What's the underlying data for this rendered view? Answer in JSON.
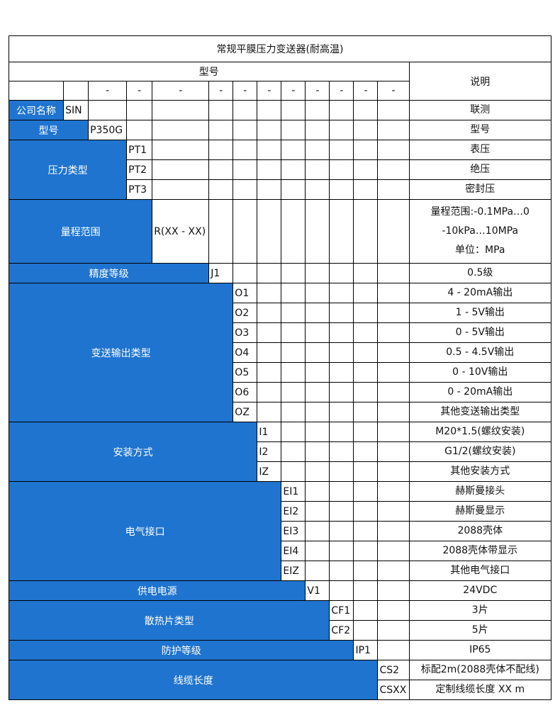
{
  "title": "常规平膜压力变送器(耐高温)",
  "header": {
    "model_label": "型号",
    "description_label": "说明",
    "separators": [
      "-",
      "-",
      "-",
      "-",
      "-",
      "-",
      "-",
      "-",
      "-",
      "-",
      "-"
    ]
  },
  "colors": {
    "label_bg": "#1f74cf",
    "label_text": "#ffffff",
    "border": "#000000"
  },
  "groups": [
    {
      "label": "公司名称",
      "items": [
        {
          "code": "SIN",
          "desc": [
            "联测"
          ]
        }
      ]
    },
    {
      "label": "型号",
      "items": [
        {
          "code": "P350G",
          "desc": [
            "型号"
          ]
        }
      ]
    },
    {
      "label": "压力类型",
      "items": [
        {
          "code": "PT1",
          "desc": [
            "表压"
          ]
        },
        {
          "code": "PT2",
          "desc": [
            "绝压"
          ]
        },
        {
          "code": "PT3",
          "desc": [
            "密封压"
          ]
        }
      ]
    },
    {
      "label": "量程范围",
      "items": [
        {
          "code": "R(XX - XX)",
          "desc": [
            "量程范围:-0.1MPa…0",
            "-10kPa…10MPa",
            "单位：MPa"
          ]
        }
      ]
    },
    {
      "label": "精度等级",
      "items": [
        {
          "code": "J1",
          "desc": [
            "0.5级"
          ]
        }
      ]
    },
    {
      "label": "变送输出类型",
      "items": [
        {
          "code": "O1",
          "desc": [
            "4 - 20mA输出"
          ]
        },
        {
          "code": "O2",
          "desc": [
            "1 - 5V输出"
          ]
        },
        {
          "code": "O3",
          "desc": [
            "0 - 5V输出"
          ]
        },
        {
          "code": "O4",
          "desc": [
            "0.5 - 4.5V输出"
          ]
        },
        {
          "code": "O5",
          "desc": [
            "0 - 10V输出"
          ]
        },
        {
          "code": "O6",
          "desc": [
            "0 - 20mA输出"
          ]
        },
        {
          "code": "OZ",
          "desc": [
            "其他变送输出类型"
          ]
        }
      ]
    },
    {
      "label": "安装方式",
      "items": [
        {
          "code": "I1",
          "desc": [
            "M20*1.5(螺纹安装)"
          ]
        },
        {
          "code": "I2",
          "desc": [
            "G1/2(螺纹安装)"
          ]
        },
        {
          "code": "IZ",
          "desc": [
            "其他安装方式"
          ]
        }
      ]
    },
    {
      "label": "电气接口",
      "items": [
        {
          "code": "EI1",
          "desc": [
            "赫斯曼接头"
          ]
        },
        {
          "code": "EI2",
          "desc": [
            "赫斯曼显示"
          ]
        },
        {
          "code": "EI3",
          "desc": [
            "2088壳体"
          ]
        },
        {
          "code": "EI4",
          "desc": [
            "2088壳体带显示"
          ]
        },
        {
          "code": "EIZ",
          "desc": [
            "其他电气接口"
          ]
        }
      ]
    },
    {
      "label": "供电电源",
      "items": [
        {
          "code": "V1",
          "desc": [
            "24VDC"
          ]
        }
      ]
    },
    {
      "label": "散热片类型",
      "items": [
        {
          "code": "CF1",
          "desc": [
            "3片"
          ]
        },
        {
          "code": "CF2",
          "desc": [
            "5片"
          ]
        }
      ]
    },
    {
      "label": "防护等级",
      "items": [
        {
          "code": "IP1",
          "desc": [
            "IP65"
          ]
        }
      ]
    },
    {
      "label": "线缆长度",
      "items": [
        {
          "code": "CS2",
          "desc": [
            "标配2m(2088壳体不配线)"
          ]
        },
        {
          "code": "CSXX",
          "desc": [
            "定制线缆长度 XX m"
          ]
        }
      ]
    }
  ]
}
